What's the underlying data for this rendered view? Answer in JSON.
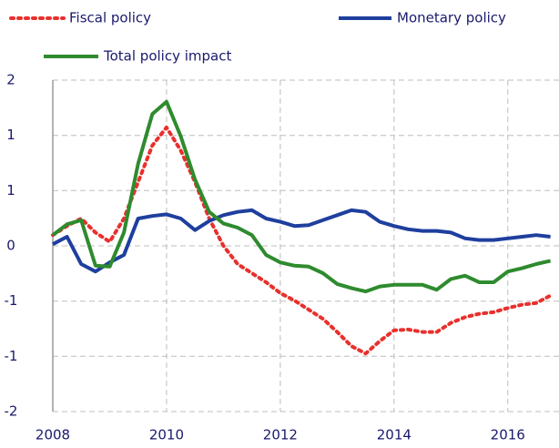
{
  "chart_data": {
    "type": "line",
    "x": [
      2008,
      2008.25,
      2008.5,
      2008.75,
      2009,
      2009.25,
      2009.5,
      2009.75,
      2010,
      2010.25,
      2010.5,
      2010.75,
      2011,
      2011.25,
      2011.5,
      2011.75,
      2012,
      2012.25,
      2012.5,
      2012.75,
      2013,
      2013.25,
      2013.5,
      2013.75,
      2014,
      2014.25,
      2014.5,
      2014.75,
      2015,
      2015.25,
      2015.5,
      2015.75,
      2016,
      2016.25,
      2016.5,
      2016.75
    ],
    "series": [
      {
        "name": "Fiscal policy",
        "color": "#e8302c",
        "line_style": "dotted",
        "values": [
          0.13,
          0.24,
          0.33,
          0.16,
          0.05,
          0.33,
          0.77,
          1.21,
          1.43,
          1.15,
          0.77,
          0.33,
          0.0,
          -0.22,
          -0.33,
          -0.44,
          -0.57,
          -0.66,
          -0.77,
          -0.88,
          -1.04,
          -1.21,
          -1.3,
          -1.15,
          -1.02,
          -1.01,
          -1.04,
          -1.04,
          -0.93,
          -0.86,
          -0.82,
          -0.8,
          -0.75,
          -0.71,
          -0.69,
          -0.6
        ]
      },
      {
        "name": "Monetary policy",
        "color": "#1f3f9e",
        "line_style": "solid",
        "values": [
          0.02,
          0.11,
          -0.22,
          -0.31,
          -0.2,
          -0.11,
          0.33,
          0.36,
          0.38,
          0.33,
          0.19,
          0.3,
          0.37,
          0.41,
          0.43,
          0.33,
          0.29,
          0.24,
          0.25,
          0.31,
          0.37,
          0.43,
          0.41,
          0.29,
          0.24,
          0.2,
          0.18,
          0.18,
          0.16,
          0.09,
          0.07,
          0.07,
          0.09,
          0.11,
          0.13,
          0.11
        ]
      },
      {
        "name": "Total policy impact",
        "color": "#2e8b2e",
        "line_style": "solid",
        "values": [
          0.13,
          0.26,
          0.31,
          -0.24,
          -0.25,
          0.16,
          0.99,
          1.59,
          1.74,
          1.32,
          0.8,
          0.41,
          0.27,
          0.22,
          0.13,
          -0.11,
          -0.2,
          -0.24,
          -0.25,
          -0.33,
          -0.46,
          -0.51,
          -0.55,
          -0.49,
          -0.47,
          -0.47,
          -0.47,
          -0.53,
          -0.4,
          -0.36,
          -0.44,
          -0.44,
          -0.31,
          -0.27,
          -0.22,
          -0.18
        ]
      }
    ],
    "xlim": [
      2008,
      2016.9
    ],
    "xticks": [
      2008,
      2010,
      2012,
      2014,
      2016
    ],
    "ylim": [
      -2,
      2
    ],
    "yticks": [
      -2,
      {
        "value": -1.333,
        "label": "-1"
      },
      {
        "value": -0.667,
        "label": "-1"
      },
      0,
      {
        "value": 0.667,
        "label": "1"
      },
      {
        "value": 1.333,
        "label": "1"
      },
      2
    ],
    "grid": true
  }
}
